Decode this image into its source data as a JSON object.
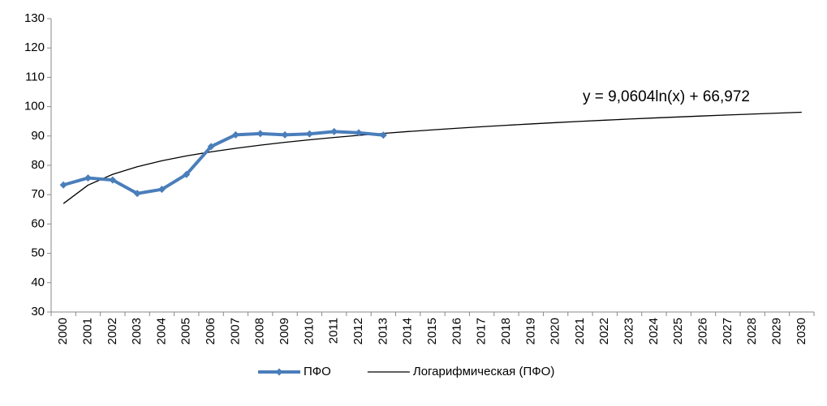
{
  "chart_data": {
    "type": "line",
    "categories": [
      "2000",
      "2001",
      "2002",
      "2003",
      "2004",
      "2005",
      "2006",
      "2007",
      "2008",
      "2009",
      "2010",
      "2011",
      "2012",
      "2013",
      "2014",
      "2015",
      "2016",
      "2017",
      "2018",
      "2019",
      "2020",
      "2021",
      "2022",
      "2023",
      "2024",
      "2025",
      "2026",
      "2027",
      "2028",
      "2029",
      "2030"
    ],
    "series": [
      {
        "name": "ПФО",
        "color": "#4a7ebb",
        "marker": "diamond",
        "values": [
          73.3,
          75.7,
          75.0,
          70.4,
          71.8,
          76.9,
          86.4,
          90.4,
          90.8,
          90.4,
          90.7,
          91.5,
          91.1,
          90.3,
          null,
          null,
          null,
          null,
          null,
          null,
          null,
          null,
          null,
          null,
          null,
          null,
          null,
          null,
          null,
          null,
          null
        ]
      },
      {
        "name": "Логарифмическая (ПФО)",
        "color": "#000000",
        "values": [
          66.97,
          73.25,
          76.93,
          79.53,
          81.55,
          83.21,
          84.6,
          85.81,
          86.88,
          87.83,
          88.7,
          89.49,
          90.21,
          90.88,
          91.51,
          92.09,
          92.64,
          93.16,
          93.65,
          94.11,
          94.56,
          94.98,
          95.38,
          95.77,
          96.14,
          96.49,
          96.83,
          97.16,
          97.48,
          97.79,
          98.09
        ]
      }
    ],
    "annotation": "y = 9,0604ln(x) + 66,972",
    "ylim": [
      30,
      130
    ],
    "yticks": [
      30,
      40,
      50,
      60,
      70,
      80,
      90,
      100,
      110,
      120,
      130
    ],
    "grid": false,
    "legend": "bottom"
  }
}
